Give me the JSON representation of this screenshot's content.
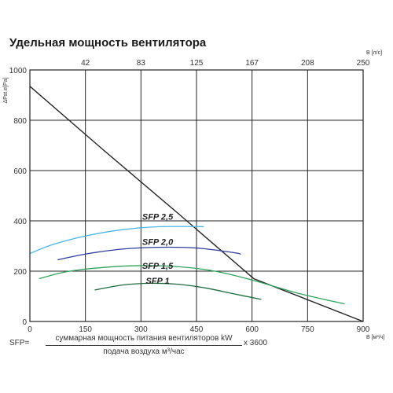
{
  "title": "Удельная мощность вентилятора",
  "chart_data": {
    "type": "line",
    "xlabel": "В [м³/ч]",
    "ylabel": "ΔPst.e[Pa]",
    "x2label": "В [л/с]",
    "xlim": [
      0,
      900
    ],
    "ylim": [
      0,
      1000
    ],
    "x_ticks": [
      0,
      150,
      300,
      450,
      600,
      750,
      900
    ],
    "y_ticks": [
      0,
      200,
      400,
      600,
      800,
      1000
    ],
    "x2_ticks": [
      {
        "label": "42",
        "x": 150
      },
      {
        "label": "83",
        "x": 300
      },
      {
        "label": "125",
        "x": 450
      },
      {
        "label": "167",
        "x": 600
      },
      {
        "label": "208",
        "x": 750
      },
      {
        "label": "250",
        "x": 900
      }
    ],
    "grid": true,
    "series": [
      {
        "name": "",
        "color": "#222222",
        "points": [
          [
            0,
            935
          ],
          [
            200,
            680
          ],
          [
            400,
            430
          ],
          [
            605,
            170
          ],
          [
            900,
            0
          ]
        ]
      },
      {
        "name": "SFP 2,5",
        "color": "#45b6e8",
        "label_at": [
          345,
          405
        ],
        "points": [
          [
            0,
            270
          ],
          [
            60,
            305
          ],
          [
            150,
            340
          ],
          [
            250,
            365
          ],
          [
            350,
            377
          ],
          [
            470,
            377
          ]
        ]
      },
      {
        "name": "SFP 2,0",
        "color": "#2c3e9c",
        "label_at": [
          345,
          305
        ],
        "points": [
          [
            75,
            245
          ],
          [
            150,
            268
          ],
          [
            250,
            288
          ],
          [
            350,
            295
          ],
          [
            450,
            292
          ],
          [
            545,
            275
          ],
          [
            570,
            268
          ]
        ]
      },
      {
        "name": "SFP 1,5",
        "color": "#2fa35a",
        "label_at": [
          345,
          210
        ],
        "points": [
          [
            25,
            170
          ],
          [
            100,
            198
          ],
          [
            200,
            215
          ],
          [
            300,
            222
          ],
          [
            400,
            218
          ],
          [
            500,
            200
          ],
          [
            600,
            165
          ],
          [
            730,
            110
          ],
          [
            850,
            70
          ]
        ]
      },
      {
        "name": "SFP 1",
        "color": "#1e6b3c",
        "label_at": [
          345,
          150
        ],
        "points": [
          [
            175,
            125
          ],
          [
            250,
            145
          ],
          [
            325,
            152
          ],
          [
            400,
            148
          ],
          [
            475,
            133
          ],
          [
            550,
            110
          ],
          [
            625,
            88
          ]
        ]
      }
    ]
  },
  "formula": {
    "lhs": "SFP=",
    "numerator": "суммарная мощность питания вентиляторов kW",
    "denominator": "подача воздуха м³/час",
    "multiplier": "x 3600"
  }
}
